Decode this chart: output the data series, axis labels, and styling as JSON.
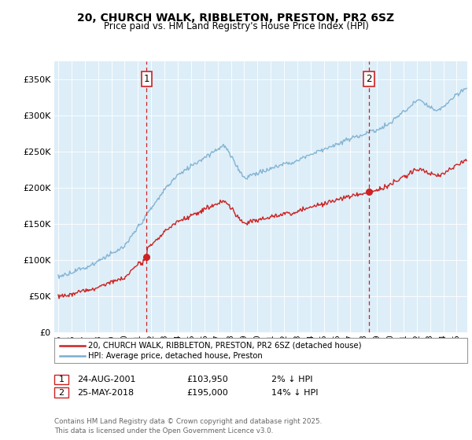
{
  "title": "20, CHURCH WALK, RIBBLETON, PRESTON, PR2 6SZ",
  "subtitle": "Price paid vs. HM Land Registry's House Price Index (HPI)",
  "legend_line1": "20, CHURCH WALK, RIBBLETON, PRESTON, PR2 6SZ (detached house)",
  "legend_line2": "HPI: Average price, detached house, Preston",
  "annotation1_date": "24-AUG-2001",
  "annotation1_price": "£103,950",
  "annotation1_hpi": "2% ↓ HPI",
  "annotation2_date": "25-MAY-2018",
  "annotation2_price": "£195,000",
  "annotation2_hpi": "14% ↓ HPI",
  "footnote": "Contains HM Land Registry data © Crown copyright and database right 2025.\nThis data is licensed under the Open Government Licence v3.0.",
  "hpi_color": "#7aadcf",
  "price_color": "#cc2222",
  "annotation_color": "#cc2222",
  "bg_color": "#ddeef8",
  "ylim": [
    0,
    375000
  ],
  "yticks": [
    0,
    50000,
    100000,
    150000,
    200000,
    250000,
    300000,
    350000
  ],
  "sale1_x": 2001.646,
  "sale1_y": 103950,
  "sale2_x": 2018.389,
  "sale2_y": 195000,
  "xlim_min": 1994.7,
  "xlim_max": 2025.8
}
